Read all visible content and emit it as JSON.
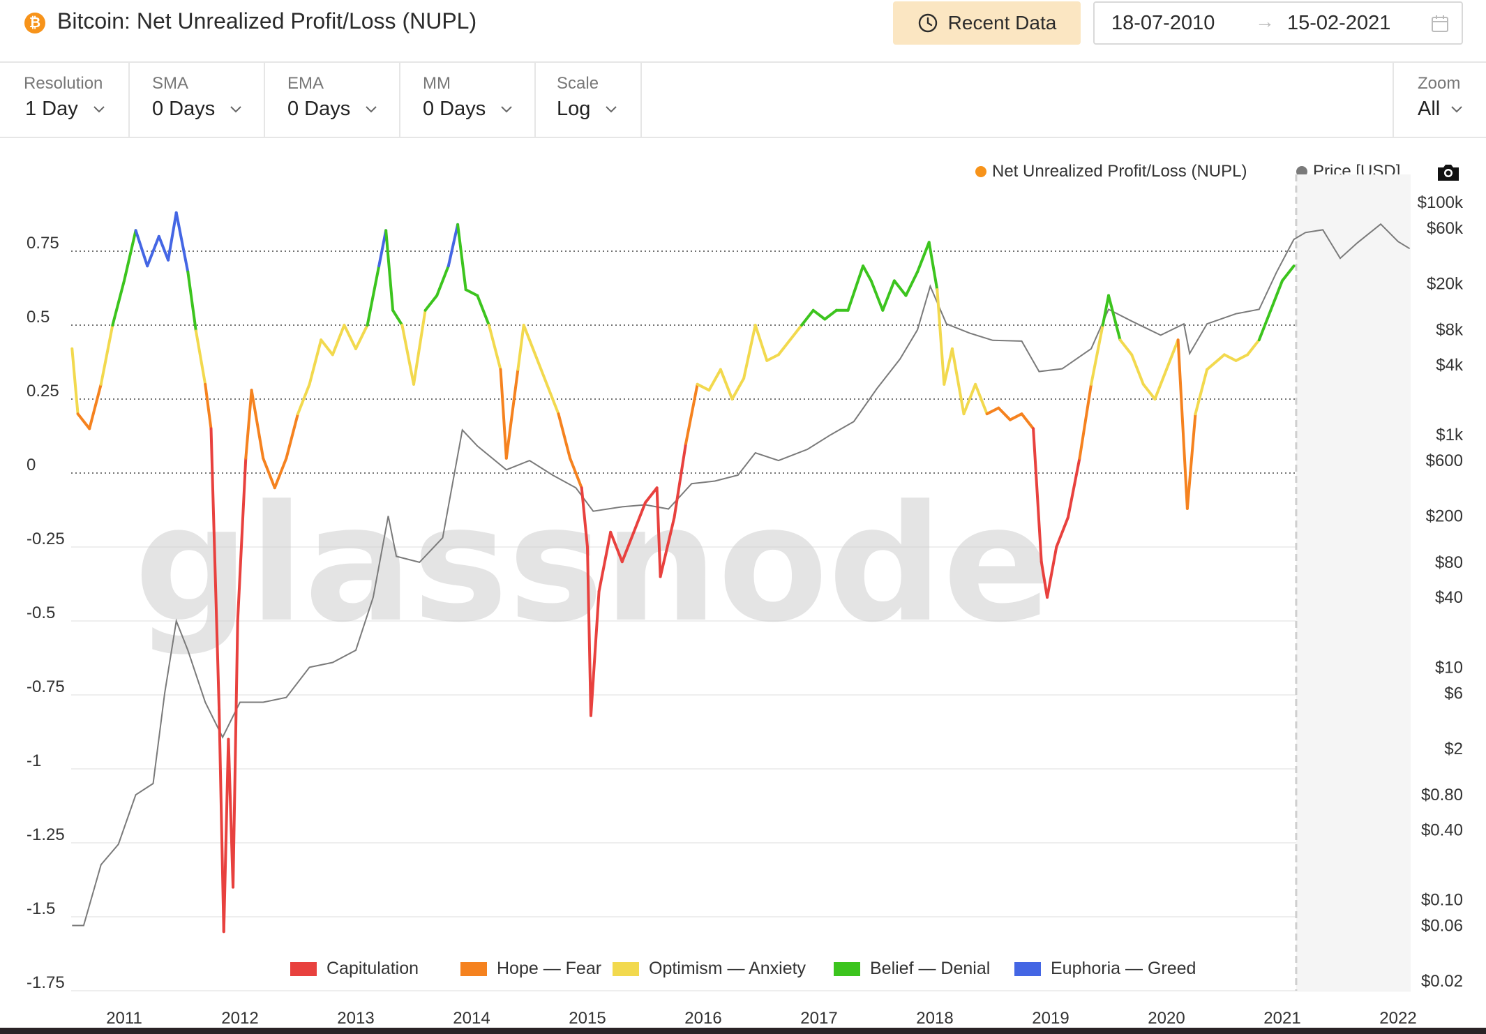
{
  "header": {
    "coin_symbol": "₿",
    "title": "Bitcoin: Net Unrealized Profit/Loss (NUPL)",
    "recent_button": "Recent Data",
    "date_start": "18-07-2010",
    "date_sep": "→",
    "date_end": "15-02-2021",
    "icons": [
      "bitcoin-icon",
      "clock-icon",
      "calendar-icon"
    ]
  },
  "toolbar": {
    "controls": [
      {
        "label": "Resolution",
        "value": "1 Day"
      },
      {
        "label": "SMA",
        "value": "0 Days"
      },
      {
        "label": "EMA",
        "value": "0 Days"
      },
      {
        "label": "MM",
        "value": "0 Days"
      },
      {
        "label": "Scale",
        "value": "Log"
      }
    ],
    "zoom": {
      "label": "Zoom",
      "value": "All"
    }
  },
  "legend_top": {
    "nupl": "Net Unrealized Profit/Loss (NUPL)",
    "price": "Price [USD]",
    "nupl_color": "#f7931a",
    "price_color": "#7a7a7a"
  },
  "legend_bottom": [
    {
      "label": "Capitulation",
      "color": "#e8413e"
    },
    {
      "label": "Hope — Fear",
      "color": "#f5821f"
    },
    {
      "label": "Optimism — Anxiety",
      "color": "#f2d94e"
    },
    {
      "label": "Belief — Denial",
      "color": "#3cc41e"
    },
    {
      "label": "Euphoria — Greed",
      "color": "#4466e4"
    }
  ],
  "watermark": "glassnode",
  "chart_data": {
    "type": "line",
    "x_ticks": [
      "2011",
      "2012",
      "2013",
      "2014",
      "2015",
      "2016",
      "2017",
      "2018",
      "2019",
      "2020",
      "2021",
      "2022"
    ],
    "y_left": {
      "ticks": [
        "0.75",
        "0.5",
        "0.25",
        "0",
        "-0.25",
        "-0.5",
        "-0.75",
        "-1",
        "-1.25",
        "-1.5",
        "-1.75"
      ],
      "range": [
        -1.75,
        0.75
      ]
    },
    "y_right": {
      "scale": "log",
      "ticks": [
        "$100k",
        "$60k",
        "$20k",
        "$8k",
        "$4k",
        "$1k",
        "$600",
        "$200",
        "$80",
        "$40",
        "$10",
        "$6",
        "$2",
        "$0.80",
        "$0.40",
        "$0.10",
        "$0.06",
        "$0.02"
      ]
    },
    "zones": [
      {
        "name": "Capitulation",
        "range": [
          -1.75,
          0
        ],
        "color": "#e8413e"
      },
      {
        "name": "Hope — Fear",
        "range": [
          0,
          0.25
        ],
        "color": "#f5821f"
      },
      {
        "name": "Optimism — Anxiety",
        "range": [
          0.25,
          0.5
        ],
        "color": "#f2d94e"
      },
      {
        "name": "Belief — Denial",
        "range": [
          0.5,
          0.75
        ],
        "color": "#3cc41e"
      },
      {
        "name": "Euphoria — Greed",
        "range": [
          0.75,
          1.0
        ],
        "color": "#4466e4"
      }
    ],
    "series": [
      {
        "name": "Net Unrealized Profit/Loss (NUPL)",
        "points": [
          [
            2010.55,
            0.42
          ],
          [
            2010.6,
            0.2
          ],
          [
            2010.7,
            0.15
          ],
          [
            2010.8,
            0.3
          ],
          [
            2010.9,
            0.5
          ],
          [
            2011.0,
            0.65
          ],
          [
            2011.1,
            0.82
          ],
          [
            2011.2,
            0.7
          ],
          [
            2011.3,
            0.8
          ],
          [
            2011.38,
            0.72
          ],
          [
            2011.45,
            0.88
          ],
          [
            2011.55,
            0.68
          ],
          [
            2011.62,
            0.48
          ],
          [
            2011.7,
            0.3
          ],
          [
            2011.75,
            0.15
          ],
          [
            2011.82,
            -0.8
          ],
          [
            2011.86,
            -1.55
          ],
          [
            2011.9,
            -0.9
          ],
          [
            2011.94,
            -1.4
          ],
          [
            2011.98,
            -0.5
          ],
          [
            2012.05,
            0.05
          ],
          [
            2012.1,
            0.28
          ],
          [
            2012.2,
            0.05
          ],
          [
            2012.3,
            -0.05
          ],
          [
            2012.4,
            0.05
          ],
          [
            2012.5,
            0.2
          ],
          [
            2012.6,
            0.3
          ],
          [
            2012.7,
            0.45
          ],
          [
            2012.8,
            0.4
          ],
          [
            2012.9,
            0.5
          ],
          [
            2013.0,
            0.42
          ],
          [
            2013.1,
            0.5
          ],
          [
            2013.2,
            0.7
          ],
          [
            2013.26,
            0.82
          ],
          [
            2013.32,
            0.55
          ],
          [
            2013.4,
            0.5
          ],
          [
            2013.5,
            0.3
          ],
          [
            2013.6,
            0.55
          ],
          [
            2013.7,
            0.6
          ],
          [
            2013.8,
            0.7
          ],
          [
            2013.88,
            0.84
          ],
          [
            2013.95,
            0.62
          ],
          [
            2014.05,
            0.6
          ],
          [
            2014.15,
            0.5
          ],
          [
            2014.25,
            0.35
          ],
          [
            2014.3,
            0.05
          ],
          [
            2014.4,
            0.35
          ],
          [
            2014.45,
            0.5
          ],
          [
            2014.55,
            0.4
          ],
          [
            2014.65,
            0.3
          ],
          [
            2014.75,
            0.2
          ],
          [
            2014.85,
            0.05
          ],
          [
            2014.95,
            -0.05
          ],
          [
            2015.0,
            -0.25
          ],
          [
            2015.03,
            -0.82
          ],
          [
            2015.1,
            -0.4
          ],
          [
            2015.2,
            -0.2
          ],
          [
            2015.3,
            -0.3
          ],
          [
            2015.4,
            -0.2
          ],
          [
            2015.5,
            -0.1
          ],
          [
            2015.6,
            -0.05
          ],
          [
            2015.63,
            -0.35
          ],
          [
            2015.75,
            -0.15
          ],
          [
            2015.85,
            0.1
          ],
          [
            2015.95,
            0.3
          ],
          [
            2016.05,
            0.28
          ],
          [
            2016.15,
            0.35
          ],
          [
            2016.25,
            0.25
          ],
          [
            2016.35,
            0.32
          ],
          [
            2016.45,
            0.5
          ],
          [
            2016.55,
            0.38
          ],
          [
            2016.65,
            0.4
          ],
          [
            2016.75,
            0.45
          ],
          [
            2016.85,
            0.5
          ],
          [
            2016.95,
            0.55
          ],
          [
            2017.05,
            0.52
          ],
          [
            2017.15,
            0.55
          ],
          [
            2017.25,
            0.55
          ],
          [
            2017.38,
            0.7
          ],
          [
            2017.45,
            0.65
          ],
          [
            2017.55,
            0.55
          ],
          [
            2017.65,
            0.65
          ],
          [
            2017.75,
            0.6
          ],
          [
            2017.85,
            0.68
          ],
          [
            2017.95,
            0.78
          ],
          [
            2018.02,
            0.62
          ],
          [
            2018.08,
            0.3
          ],
          [
            2018.15,
            0.42
          ],
          [
            2018.25,
            0.2
          ],
          [
            2018.35,
            0.3
          ],
          [
            2018.45,
            0.2
          ],
          [
            2018.55,
            0.22
          ],
          [
            2018.65,
            0.18
          ],
          [
            2018.75,
            0.2
          ],
          [
            2018.85,
            0.15
          ],
          [
            2018.92,
            -0.3
          ],
          [
            2018.97,
            -0.42
          ],
          [
            2019.05,
            -0.25
          ],
          [
            2019.15,
            -0.15
          ],
          [
            2019.25,
            0.05
          ],
          [
            2019.35,
            0.3
          ],
          [
            2019.45,
            0.5
          ],
          [
            2019.5,
            0.6
          ],
          [
            2019.6,
            0.45
          ],
          [
            2019.7,
            0.4
          ],
          [
            2019.8,
            0.3
          ],
          [
            2019.9,
            0.25
          ],
          [
            2020.0,
            0.35
          ],
          [
            2020.1,
            0.45
          ],
          [
            2020.18,
            -0.12
          ],
          [
            2020.25,
            0.2
          ],
          [
            2020.35,
            0.35
          ],
          [
            2020.5,
            0.4
          ],
          [
            2020.6,
            0.38
          ],
          [
            2020.7,
            0.4
          ],
          [
            2020.8,
            0.45
          ],
          [
            2020.9,
            0.55
          ],
          [
            2021.0,
            0.65
          ],
          [
            2021.1,
            0.7
          ]
        ]
      },
      {
        "name": "Price [USD]",
        "points": [
          [
            2010.55,
            0.06
          ],
          [
            2010.65,
            0.06
          ],
          [
            2010.8,
            0.2
          ],
          [
            2010.95,
            0.3
          ],
          [
            2011.1,
            0.8
          ],
          [
            2011.25,
            1.0
          ],
          [
            2011.35,
            6
          ],
          [
            2011.45,
            25
          ],
          [
            2011.55,
            14
          ],
          [
            2011.7,
            5
          ],
          [
            2011.85,
            2.5
          ],
          [
            2012.0,
            5
          ],
          [
            2012.2,
            5
          ],
          [
            2012.4,
            5.5
          ],
          [
            2012.6,
            10
          ],
          [
            2012.8,
            11
          ],
          [
            2013.0,
            14
          ],
          [
            2013.15,
            40
          ],
          [
            2013.28,
            200
          ],
          [
            2013.35,
            90
          ],
          [
            2013.55,
            80
          ],
          [
            2013.75,
            130
          ],
          [
            2013.92,
            1100
          ],
          [
            2014.05,
            800
          ],
          [
            2014.3,
            500
          ],
          [
            2014.5,
            600
          ],
          [
            2014.7,
            450
          ],
          [
            2014.9,
            350
          ],
          [
            2015.05,
            220
          ],
          [
            2015.3,
            240
          ],
          [
            2015.5,
            250
          ],
          [
            2015.7,
            230
          ],
          [
            2015.9,
            380
          ],
          [
            2016.1,
            400
          ],
          [
            2016.3,
            450
          ],
          [
            2016.45,
            700
          ],
          [
            2016.65,
            600
          ],
          [
            2016.9,
            750
          ],
          [
            2017.1,
            1000
          ],
          [
            2017.3,
            1300
          ],
          [
            2017.5,
            2500
          ],
          [
            2017.7,
            4500
          ],
          [
            2017.85,
            8000
          ],
          [
            2017.96,
            19000
          ],
          [
            2018.1,
            9000
          ],
          [
            2018.3,
            7500
          ],
          [
            2018.5,
            6500
          ],
          [
            2018.75,
            6400
          ],
          [
            2018.9,
            3500
          ],
          [
            2019.1,
            3700
          ],
          [
            2019.35,
            5500
          ],
          [
            2019.5,
            12000
          ],
          [
            2019.7,
            9500
          ],
          [
            2019.95,
            7200
          ],
          [
            2020.15,
            9000
          ],
          [
            2020.2,
            5000
          ],
          [
            2020.35,
            9000
          ],
          [
            2020.6,
            11000
          ],
          [
            2020.8,
            12000
          ],
          [
            2020.95,
            25000
          ],
          [
            2021.1,
            48000
          ],
          [
            2021.2,
            55000
          ],
          [
            2021.35,
            58000
          ],
          [
            2021.5,
            33000
          ],
          [
            2021.65,
            45000
          ],
          [
            2021.85,
            65000
          ],
          [
            2022.0,
            46000
          ],
          [
            2022.1,
            40000
          ]
        ]
      }
    ],
    "forecast_marker_x": 2021.12
  }
}
